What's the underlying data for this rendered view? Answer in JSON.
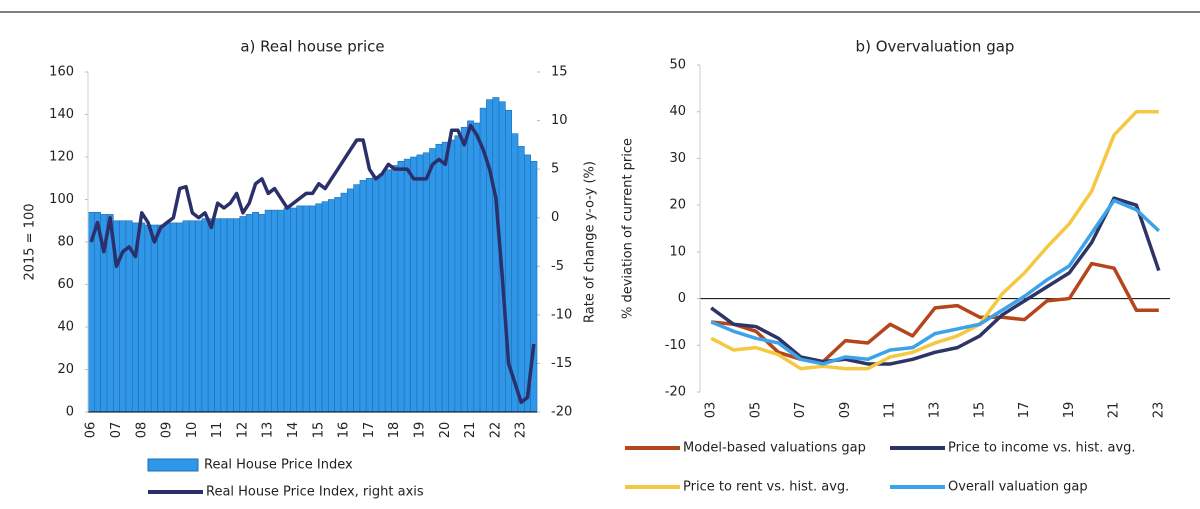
{
  "chart_data": [
    {
      "type": "bar",
      "title": "a) Real house price",
      "ylabel": "2015 = 100",
      "y2label": "Rate of change y-o-y (%)",
      "categories": [
        "06",
        null,
        null,
        null,
        "07",
        null,
        null,
        null,
        "08",
        null,
        null,
        null,
        "09",
        null,
        null,
        null,
        "10",
        null,
        null,
        null,
        "11",
        null,
        null,
        null,
        "12",
        null,
        null,
        null,
        "13",
        null,
        null,
        null,
        "14",
        null,
        null,
        null,
        "15",
        null,
        null,
        null,
        "16",
        null,
        null,
        null,
        "17",
        null,
        null,
        null,
        "18",
        null,
        null,
        null,
        "19",
        null,
        null,
        null,
        "20",
        null,
        null,
        null,
        "21",
        null,
        null,
        null,
        "22",
        null,
        null,
        null,
        "23",
        null,
        null
      ],
      "ylim": [
        0,
        160
      ],
      "yticks": [
        0,
        20,
        40,
        60,
        80,
        100,
        120,
        140,
        160
      ],
      "y2lim": [
        -20,
        15
      ],
      "y2ticks": [
        -20,
        -15,
        -10,
        -5,
        0,
        5,
        10,
        15
      ],
      "series": [
        {
          "name": "Real House Price Index",
          "type": "bar",
          "color": "#2f96e8",
          "values": [
            94,
            94,
            93,
            93,
            90,
            90,
            90,
            89,
            89,
            88,
            88,
            88,
            89,
            89,
            89,
            90,
            90,
            90,
            91,
            91,
            91,
            91,
            91,
            91,
            92,
            93,
            94,
            93,
            95,
            95,
            95,
            96,
            96,
            97,
            97,
            97,
            98,
            99,
            100,
            101,
            103,
            105,
            107,
            109,
            110,
            111,
            112,
            114,
            116,
            118,
            119,
            120,
            121,
            122,
            124,
            126,
            127,
            128,
            130,
            134,
            137,
            136,
            143,
            147,
            148,
            146,
            142,
            131,
            125,
            121,
            118
          ]
        },
        {
          "name": "Real House Price Index, right axis",
          "type": "line",
          "axis": "y2",
          "color": "#2b2f6b",
          "values": [
            -2.5,
            -0.5,
            -3.5,
            0,
            -5,
            -3.5,
            -3,
            -4,
            0.5,
            -0.5,
            -2.5,
            -1,
            -0.5,
            0,
            3,
            3.2,
            0.5,
            0,
            0.5,
            -1,
            1.5,
            1,
            1.5,
            2.5,
            0.5,
            1.5,
            3.5,
            4,
            2.5,
            3,
            2,
            1,
            1.5,
            2,
            2.5,
            2.5,
            3.5,
            3,
            4,
            5,
            6,
            7,
            8,
            8,
            5,
            4,
            4.5,
            5.5,
            5,
            5,
            5,
            4,
            4,
            4,
            5.5,
            6,
            5.5,
            9,
            9,
            7.5,
            9.5,
            8.5,
            7,
            5,
            2,
            -6,
            -15,
            -17,
            -19,
            -18.5,
            -13
          ]
        }
      ]
    },
    {
      "type": "line",
      "title": "b) Overvaluation gap",
      "ylabel": "% deviation of current price",
      "categories": [
        "03",
        null,
        "05",
        null,
        "07",
        null,
        "09",
        null,
        "11",
        null,
        "13",
        null,
        "15",
        null,
        "17",
        null,
        "19",
        null,
        "21",
        null,
        "23"
      ],
      "ylim": [
        -20,
        50
      ],
      "yticks": [
        -20,
        -10,
        0,
        10,
        20,
        30,
        40,
        50
      ],
      "series": [
        {
          "name": "Model-based valuations gap",
          "color": "#b5451b",
          "values": [
            -5,
            -5.5,
            -7,
            -11.5,
            -13,
            -13.5,
            -9,
            -9.5,
            -5.5,
            -8,
            -2,
            -1.5,
            -4,
            -4,
            -4.5,
            -0.5,
            0,
            7.5,
            6.5,
            -2.5,
            -2.5
          ]
        },
        {
          "name": "Price to income vs. hist. avg.",
          "color": "#2e3466",
          "values": [
            -2,
            -5.5,
            -6,
            -8.5,
            -12.5,
            -13.5,
            -13,
            -14,
            -14,
            -13,
            -11.5,
            -10.5,
            -8,
            -3.5,
            -0.5,
            2.5,
            5.5,
            12,
            21.5,
            20,
            6
          ]
        },
        {
          "name": "Price to rent vs. hist. avg.",
          "color": "#f5c842",
          "values": [
            -8.5,
            -11,
            -10.5,
            -12,
            -15,
            -14.5,
            -15,
            -15,
            -12.5,
            -11.5,
            -9.5,
            -8,
            -5.5,
            1,
            5.5,
            11,
            16,
            23,
            35,
            40,
            40
          ]
        },
        {
          "name": "Overall valuation gap",
          "color": "#3ca3e8",
          "values": [
            -5,
            -7,
            -8.5,
            -9.5,
            -13,
            -14,
            -12.5,
            -13,
            -11,
            -10.5,
            -7.5,
            -6.5,
            -5.5,
            -2.5,
            0.5,
            4,
            7,
            14,
            21,
            19,
            14.5
          ]
        }
      ]
    }
  ]
}
